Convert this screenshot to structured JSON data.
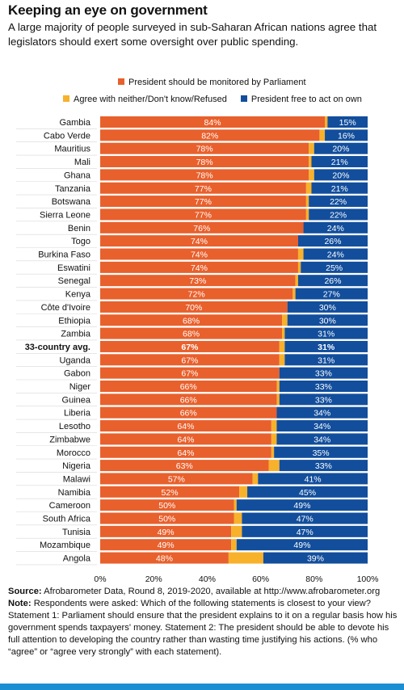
{
  "header": {
    "title": "Keeping an eye on government",
    "subtitle": "A large majority of people surveyed in sub-Saharan African nations agree that legislators should exert some oversight over public spending."
  },
  "footer": {
    "source_label": "Source:",
    "source_text": "Afrobarometer Data, Round 8, 2019-2020, available at http://www.afrobarometer.org",
    "note_label": "Note:",
    "note_text": "Respondents were asked: Which of the following statements is closest to your view? Statement 1: Parliament should ensure that the president explains to it on a regular basis how his government spends taxpayers' money. Statement 2: The president should be able to devote his full attention to developing the country rather than wasting time justifying his actions. (% who “agree” or “agree very strongly” with each statement)."
  },
  "colors": {
    "monitored": "#e8602c",
    "neither": "#f7b12b",
    "free": "#124e9c",
    "accent_bar": "#1b8fd1"
  },
  "chart_data": {
    "type": "bar",
    "orientation": "horizontal",
    "stacked": true,
    "title": "Keeping an eye on government",
    "xlim": [
      0,
      100
    ],
    "x_ticks": [
      "0%",
      "20%",
      "40%",
      "60%",
      "80%",
      "100%"
    ],
    "legend_position": "top",
    "highlight_category": "33-country avg.",
    "categories": [
      "Gambia",
      "Cabo Verde",
      "Mauritius",
      "Mali",
      "Ghana",
      "Tanzania",
      "Botswana",
      "Sierra Leone",
      "Benin",
      "Togo",
      "Burkina Faso",
      "Eswatini",
      "Senegal",
      "Kenya",
      "Côte d'Ivoire",
      "Ethiopia",
      "Zambia",
      "33-country avg.",
      "Uganda",
      "Gabon",
      "Niger",
      "Guinea",
      "Liberia",
      "Lesotho",
      "Zimbabwe",
      "Morocco",
      "Nigeria",
      "Malawi",
      "Namibia",
      "Cameroon",
      "South Africa",
      "Tunisia",
      "Mozambique",
      "Angola"
    ],
    "series": [
      {
        "name": "President should be monitored by Parliament",
        "color": "#e8602c",
        "values": [
          84,
          82,
          78,
          78,
          78,
          77,
          77,
          77,
          76,
          74,
          74,
          74,
          73,
          72,
          70,
          68,
          68,
          67,
          67,
          67,
          66,
          66,
          66,
          64,
          64,
          64,
          63,
          57,
          52,
          50,
          50,
          49,
          49,
          48
        ],
        "labels": [
          "84%",
          "82%",
          "78%",
          "78%",
          "78%",
          "77%",
          "77%",
          "77%",
          "76%",
          "74%",
          "74%",
          "74%",
          "73%",
          "72%",
          "70%",
          "68%",
          "68%",
          "67%",
          "67%",
          "67%",
          "66%",
          "66%",
          "66%",
          "64%",
          "64%",
          "64%",
          "63%",
          "57%",
          "52%",
          "50%",
          "50%",
          "49%",
          "49%",
          "48%"
        ]
      },
      {
        "name": "Agree with neither/Don't know/Refused",
        "color": "#f7b12b",
        "values": [
          1,
          2,
          2,
          1,
          2,
          2,
          1,
          1,
          0,
          0,
          2,
          1,
          1,
          1,
          0,
          2,
          1,
          2,
          2,
          0,
          1,
          1,
          0,
          2,
          2,
          1,
          4,
          2,
          3,
          1,
          3,
          4,
          2,
          13
        ]
      },
      {
        "name": "President free to act on own",
        "color": "#124e9c",
        "values": [
          15,
          16,
          20,
          21,
          20,
          21,
          22,
          22,
          24,
          26,
          24,
          25,
          26,
          27,
          30,
          30,
          31,
          31,
          31,
          33,
          33,
          33,
          34,
          34,
          34,
          35,
          33,
          41,
          45,
          49,
          47,
          47,
          49,
          39
        ],
        "labels": [
          "15%",
          "16%",
          "20%",
          "21%",
          "20%",
          "21%",
          "22%",
          "22%",
          "24%",
          "26%",
          "24%",
          "25%",
          "26%",
          "27%",
          "30%",
          "30%",
          "31%",
          "31%",
          "31%",
          "33%",
          "33%",
          "33%",
          "34%",
          "34%",
          "34%",
          "35%",
          "33%",
          "41%",
          "45%",
          "49%",
          "47%",
          "47%",
          "49%",
          "39%"
        ]
      }
    ]
  }
}
